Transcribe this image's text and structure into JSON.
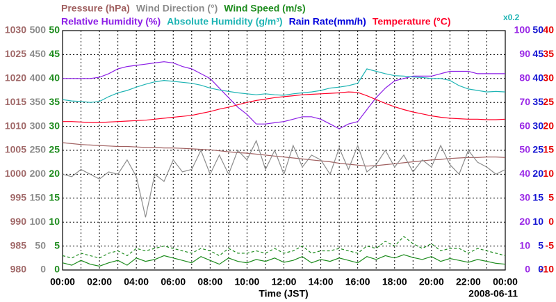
{
  "chart_data": {
    "type": "line",
    "x": [
      0,
      0.5,
      1,
      1.5,
      2,
      2.5,
      3,
      3.5,
      4,
      4.5,
      5,
      5.5,
      6,
      6.5,
      7,
      7.5,
      8,
      8.5,
      9,
      9.5,
      10,
      10.5,
      11,
      11.5,
      12,
      12.5,
      13,
      13.5,
      14,
      14.5,
      15,
      15.5,
      16,
      16.5,
      17,
      17.5,
      18,
      18.5,
      19,
      19.5,
      20,
      20.5,
      21,
      21.5,
      22,
      22.5,
      23,
      23.5,
      24
    ],
    "xlim": [
      0,
      24
    ],
    "xticks": [
      {
        "value": 0,
        "label": "00:00"
      },
      {
        "value": 2,
        "label": "02:00"
      },
      {
        "value": 4,
        "label": "04:00"
      },
      {
        "value": 6,
        "label": "06:00"
      },
      {
        "value": 8,
        "label": "08:00"
      },
      {
        "value": 10,
        "label": "10:00"
      },
      {
        "value": 12,
        "label": "12:00"
      },
      {
        "value": 14,
        "label": "14:00"
      },
      {
        "value": 16,
        "label": "16:00"
      },
      {
        "value": 18,
        "label": "18:00"
      },
      {
        "value": 20,
        "label": "20:00"
      },
      {
        "value": 22,
        "label": "22:00"
      },
      {
        "value": 24,
        "label": "00:00"
      }
    ],
    "xminor": [
      1,
      3,
      5,
      7,
      9,
      11,
      13,
      15,
      17,
      19,
      21,
      23
    ],
    "xlabel": "Time (JST)",
    "date": "2008-06-11",
    "note": "x0.2",
    "grid": true,
    "axes": [
      {
        "side": "left",
        "color": "#a06868",
        "ylim": [
          980,
          1030
        ],
        "yticks": [
          980,
          985,
          990,
          995,
          1000,
          1005,
          1010,
          1015,
          1020,
          1025,
          1030
        ]
      },
      {
        "side": "left",
        "color": "#8c8c8c",
        "ylim": [
          0,
          500
        ],
        "yticks": [
          0,
          50,
          100,
          150,
          200,
          250,
          300,
          350,
          400,
          450,
          500
        ]
      },
      {
        "side": "left",
        "color": "#1e8c1e",
        "ylim": [
          0,
          50
        ],
        "yticks": [
          0,
          5,
          10,
          15,
          20,
          25,
          30,
          35,
          40,
          45,
          50
        ]
      },
      {
        "side": "right",
        "color": "#9a28e6",
        "ylim": [
          0,
          100
        ],
        "yticks": [
          0,
          10,
          20,
          30,
          40,
          50,
          60,
          70,
          80,
          90,
          100
        ]
      },
      {
        "side": "right",
        "color": "#1414d2",
        "ylim": [
          0,
          50
        ],
        "yticks": [
          0,
          5,
          10,
          15,
          20,
          25,
          30,
          35,
          40,
          45,
          50
        ]
      },
      {
        "side": "right",
        "color": "#e60000",
        "ylim": [
          -10,
          40
        ],
        "yticks": [
          -10,
          -5,
          0,
          5,
          10,
          15,
          20,
          25,
          30,
          35,
          40
        ]
      }
    ],
    "series": [
      {
        "name": "Pressure (hPa)",
        "color": "#a06060",
        "axis": 0,
        "values": [
          1006.6,
          1006.4,
          1006.2,
          1006.1,
          1006,
          1005.9,
          1005.8,
          1005.8,
          1005.7,
          1005.6,
          1005.6,
          1005.5,
          1005.5,
          1005.4,
          1005.3,
          1005.2,
          1005.1,
          1004.9,
          1004.7,
          1004.5,
          1004.4,
          1004.2,
          1004,
          1003.8,
          1003.6,
          1003.4,
          1003.2,
          1003,
          1002.8,
          1002.6,
          1002.3,
          1002.1,
          1001.9,
          1001.7,
          1001.8,
          1002,
          1002.2,
          1002.4,
          1002.6,
          1002.8,
          1003,
          1003.1,
          1003.3,
          1003.4,
          1003.5,
          1003.5,
          1003.6,
          1003.6,
          1003.5
        ]
      },
      {
        "name": "Wind Direction (°)",
        "color": "#8c8c8c",
        "axis": 1,
        "values": [
          200,
          195,
          210,
          200,
          190,
          205,
          200,
          230,
          195,
          110,
          200,
          185,
          230,
          205,
          210,
          250,
          200,
          240,
          200,
          250,
          230,
          270,
          210,
          250,
          200,
          260,
          215,
          240,
          230,
          200,
          255,
          210,
          260,
          205,
          220,
          250,
          215,
          240,
          205,
          230,
          215,
          260,
          220,
          200,
          250,
          225,
          215,
          200,
          210
        ]
      },
      {
        "name": "Wind Speed (m/s)",
        "color": "#1e8c1e",
        "axis": 2,
        "values": [
          1.5,
          1,
          2,
          1.2,
          0.8,
          1.5,
          2,
          1,
          2.5,
          1.8,
          2.2,
          3,
          2.5,
          2,
          1.5,
          2.8,
          2,
          1.2,
          2.5,
          1.8,
          1.5,
          2.2,
          1.8,
          2.5,
          1.6,
          2,
          2.8,
          1.5,
          2.2,
          1.8,
          2.5,
          2,
          1.5,
          2.8,
          2.2,
          3,
          2.5,
          3.2,
          2.6,
          2.2,
          2.8,
          1.8,
          2.4,
          2,
          1.6,
          2.2,
          1.8,
          1.4,
          1.2
        ]
      },
      {
        "color": "#1e8c1e",
        "axis": 2,
        "dash": true,
        "values": [
          3,
          2.5,
          3.5,
          3,
          2.5,
          3.5,
          4,
          3,
          4.5,
          4,
          4.5,
          5,
          4.5,
          4,
          3.5,
          4.5,
          4,
          3,
          4.5,
          3.5,
          3.5,
          4,
          3.5,
          4.5,
          3.5,
          4,
          5,
          3.5,
          4,
          4,
          4.5,
          4,
          3.5,
          5,
          4.5,
          6,
          5,
          7,
          5.5,
          4.5,
          5.5,
          4,
          4.5,
          4.5,
          3.5,
          4.5,
          4,
          3.5,
          3
        ]
      },
      {
        "name": "Relative Humidity (%)",
        "color": "#8c1ee6",
        "axis": 3,
        "values": [
          80,
          80,
          80,
          80,
          80.5,
          82,
          84,
          85,
          85.5,
          86,
          86.5,
          87,
          86.5,
          85,
          84,
          82,
          80,
          76,
          72,
          68,
          65,
          61,
          61,
          61.5,
          62,
          63,
          64,
          64,
          63,
          61,
          59,
          61,
          62,
          67,
          72,
          76,
          79,
          80,
          81,
          81,
          81,
          82,
          83,
          83,
          83,
          82,
          82,
          82,
          82
        ]
      },
      {
        "name": "Absolute Humidity (g/m³)",
        "color": "#1eb4b4",
        "axis": 4,
        "values": [
          35.6,
          35.3,
          35.2,
          35,
          35.2,
          36.2,
          37,
          37.5,
          38.2,
          38.8,
          39.3,
          39.6,
          39.4,
          39.2,
          39,
          38.6,
          38,
          37.6,
          37.3,
          37,
          36.8,
          36.6,
          36.8,
          36.6,
          36.5,
          36.8,
          37,
          37.2,
          37.5,
          38,
          38.2,
          38.5,
          39,
          42,
          41.5,
          41,
          40.6,
          40.5,
          40.3,
          40.2,
          40,
          40,
          39.6,
          38.5,
          37.8,
          37.5,
          37.2,
          37.3,
          37.2
        ]
      },
      {
        "name": "Rain Rate(mm/h)",
        "color": "#0000dc",
        "axis": 4
      },
      {
        "name": "Temperature (°C)",
        "color": "#ff0028",
        "axis": 5,
        "values": [
          21,
          21,
          20.9,
          20.8,
          20.8,
          20.9,
          21,
          21.1,
          21.2,
          21.3,
          21.5,
          21.7,
          21.9,
          22.1,
          22.3,
          22.7,
          23.1,
          23.6,
          24,
          24.5,
          25,
          25.4,
          25.7,
          26,
          26.2,
          26.4,
          26.6,
          26.7,
          26.8,
          26.9,
          27,
          27.2,
          27.1,
          26.4,
          25.6,
          24.8,
          24.1,
          23.5,
          23,
          22.6,
          22.2,
          21.9,
          21.7,
          21.6,
          21.5,
          21.5,
          21.4,
          21.4,
          21.5
        ]
      }
    ]
  }
}
